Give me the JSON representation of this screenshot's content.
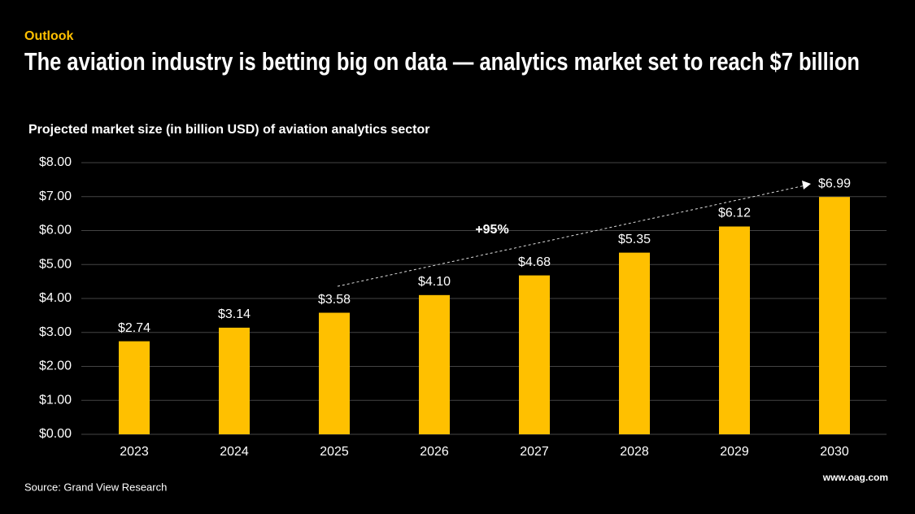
{
  "chart_data": {
    "type": "bar",
    "kicker": "Outlook",
    "title": "The aviation industry is betting big on data — analytics market set to reach $7 billion",
    "subtitle": "Projected market size (in billion USD) of aviation analytics sector",
    "categories": [
      "2023",
      "2024",
      "2025",
      "2026",
      "2027",
      "2028",
      "2029",
      "2030"
    ],
    "values": [
      2.74,
      3.14,
      3.58,
      4.1,
      4.68,
      5.35,
      6.12,
      6.99
    ],
    "value_labels": [
      "$2.74",
      "$3.14",
      "$3.58",
      "$4.10",
      "$4.68",
      "$5.35",
      "$6.12",
      "$6.99"
    ],
    "color": "#FFC000",
    "ylim": [
      0,
      8
    ],
    "yticks": [
      {
        "value": 0,
        "label": "$0.00"
      },
      {
        "value": 1,
        "label": "$1.00"
      },
      {
        "value": 2,
        "label": "$2.00"
      },
      {
        "value": 3,
        "label": "$3.00"
      },
      {
        "value": 4,
        "label": "$4.00"
      },
      {
        "value": 5,
        "label": "$5.00"
      },
      {
        "value": 6,
        "label": "$6.00"
      },
      {
        "value": 7,
        "label": "$7.00"
      },
      {
        "value": 8,
        "label": "$8.00"
      }
    ],
    "grid": true,
    "annotation": "+95%",
    "source": "Source: Grand View Research",
    "brand": "www.oag.com"
  }
}
